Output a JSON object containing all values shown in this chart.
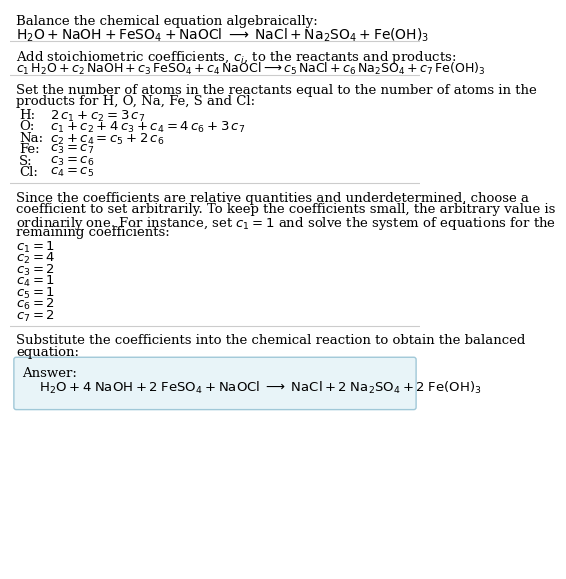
{
  "bg_color": "#ffffff",
  "answer_box_color": "#e8f4f8",
  "answer_box_edge": "#a0c8d8",
  "text_color": "#000000",
  "font_size": 9.5,
  "title_section": "Balance the chemical equation algebraically:",
  "section2_title": "Add stoichiometric coefficients, $c_i$, to the reactants and products:",
  "section3_intro_line1": "Set the number of atoms in the reactants equal to the number of atoms in the",
  "section3_intro_line2": "products for H, O, Na, Fe, S and Cl:",
  "section3_equations": [
    [
      " H:",
      "$2\\,c_1 + c_2 = 3\\,c_7$"
    ],
    [
      " O:",
      "$c_1 + c_2 + 4\\,c_3 + c_4 = 4\\,c_6 + 3\\,c_7$"
    ],
    [
      "Na:",
      "$c_2 + c_4 = c_5 + 2\\,c_6$"
    ],
    [
      "Fe:",
      "$c_3 = c_7$"
    ],
    [
      "  S:",
      "$c_3 = c_6$"
    ],
    [
      "Cl:",
      "$c_4 = c_5$"
    ]
  ],
  "section4_intro_lines": [
    "Since the coefficients are relative quantities and underdetermined, choose a",
    "coefficient to set arbitrarily. To keep the coefficients small, the arbitrary value is",
    "ordinarily one. For instance, set $c_1 = 1$ and solve the system of equations for the",
    "remaining coefficients:"
  ],
  "section4_values": [
    "$c_1 = 1$",
    "$c_2 = 4$",
    "$c_3 = 2$",
    "$c_4 = 1$",
    "$c_5 = 1$",
    "$c_6 = 2$",
    "$c_7 = 2$"
  ],
  "section5_intro_line1": "Substitute the coefficients into the chemical reaction to obtain the balanced",
  "section5_intro_line2": "equation:",
  "answer_label": "Answer:",
  "line_color": "#cccccc"
}
